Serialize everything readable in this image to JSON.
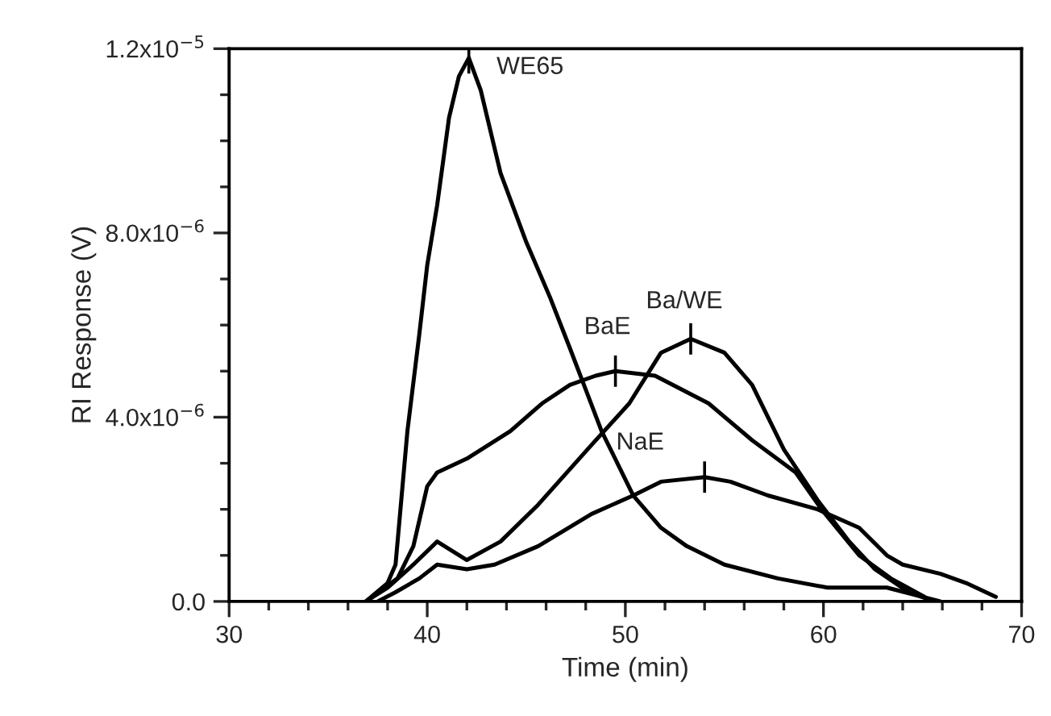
{
  "chart_data": {
    "type": "line",
    "xlabel": "Time (min)",
    "ylabel": "RI Response (V)",
    "xlim": [
      30,
      70
    ],
    "xticks": [
      30,
      40,
      50,
      60,
      70
    ],
    "ylim": [
      0,
      1.2e-05
    ],
    "yticks": [
      {
        "value": 0,
        "label": "0.0"
      },
      {
        "value": 4e-06,
        "label": "4.0x10$^{−6}$"
      },
      {
        "value": 8e-06,
        "label": "8.0x10$^{−6}$"
      },
      {
        "value": 1.2e-05,
        "label": "1.2x10$^{−5}$"
      }
    ],
    "grid": false,
    "legend": false,
    "marker": "none",
    "line_style": "solid",
    "series": [
      {
        "color": "#000000",
        "x": [
          36.9,
          38.0,
          38.4,
          39.0,
          39.6,
          40.0,
          40.5,
          41.1,
          41.6,
          42.1,
          42.7,
          43.7,
          45.0,
          46.2,
          47.2,
          48.0,
          48.8,
          50.4,
          51.8,
          53.1,
          55.0,
          57.7,
          60.2,
          63.2,
          65.9
        ],
        "values": [
          0,
          4e-07,
          8e-07,
          3.7e-06,
          5.8e-06,
          7.3e-06,
          8.6e-06,
          1.05e-05,
          1.14e-05,
          1.18e-05,
          1.11e-05,
          9.3e-06,
          7.8e-06,
          6.6e-06,
          5.5e-06,
          4.6e-06,
          3.7e-06,
          2.3e-06,
          1.6e-06,
          1.2e-06,
          8e-07,
          5e-07,
          3e-07,
          3e-07,
          0
        ]
      },
      {
        "color": "#000000",
        "x": [
          36.9,
          38.5,
          39.3,
          40.0,
          40.5,
          42.0,
          44.2,
          45.8,
          47.2,
          48.5,
          49.5,
          51.5,
          54.2,
          56.4,
          58.6,
          59.9,
          61.8,
          63.4,
          65.1
        ],
        "values": [
          0,
          5e-07,
          1.2e-06,
          2.5e-06,
          2.8e-06,
          3.1e-06,
          3.7e-06,
          4.3e-06,
          4.7e-06,
          4.9e-06,
          5e-06,
          4.9e-06,
          4.3e-06,
          3.5e-06,
          2.8e-06,
          2e-06,
          1e-06,
          5e-07,
          1e-07
        ]
      },
      {
        "color": "#000000",
        "x": [
          36.9,
          38.0,
          39.3,
          40.5,
          42.0,
          43.7,
          45.6,
          48.3,
          50.2,
          51.8,
          53.3,
          55.0,
          56.4,
          58.0,
          59.7,
          61.3,
          62.6,
          64.3,
          65.6
        ],
        "values": [
          0,
          3e-07,
          8e-07,
          1.3e-06,
          9e-07,
          1.3e-06,
          2.1e-06,
          3.4e-06,
          4.3e-06,
          5.4e-06,
          5.7e-06,
          5.4e-06,
          4.7e-06,
          3.3e-06,
          2.2e-06,
          1.3e-06,
          7e-07,
          2e-07,
          0
        ]
      },
      {
        "color": "#000000",
        "x": [
          37.5,
          38.4,
          39.6,
          40.5,
          42.0,
          43.4,
          45.6,
          48.3,
          50.4,
          51.8,
          54.0,
          55.3,
          57.2,
          59.7,
          61.8,
          63.2,
          64.0,
          65.9,
          67.2,
          68.7
        ],
        "values": [
          0,
          2e-07,
          5e-07,
          8e-07,
          7e-07,
          8e-07,
          1.2e-06,
          1.9e-06,
          2.3e-06,
          2.6e-06,
          2.7e-06,
          2.6e-06,
          2.3e-06,
          2e-06,
          1.6e-06,
          1e-06,
          8e-07,
          6e-07,
          4e-07,
          1e-07
        ]
      }
    ],
    "annotations": [
      {
        "text": "WE65",
        "x": 42.1,
        "y": 1.18e-05
      },
      {
        "text": "BaE",
        "x": 49.5,
        "y": 5e-06
      },
      {
        "text": "Ba/WE",
        "x": 53.3,
        "y": 5.7e-06
      },
      {
        "text": "NaE",
        "x": 54.0,
        "y": 2.7e-06
      }
    ]
  }
}
